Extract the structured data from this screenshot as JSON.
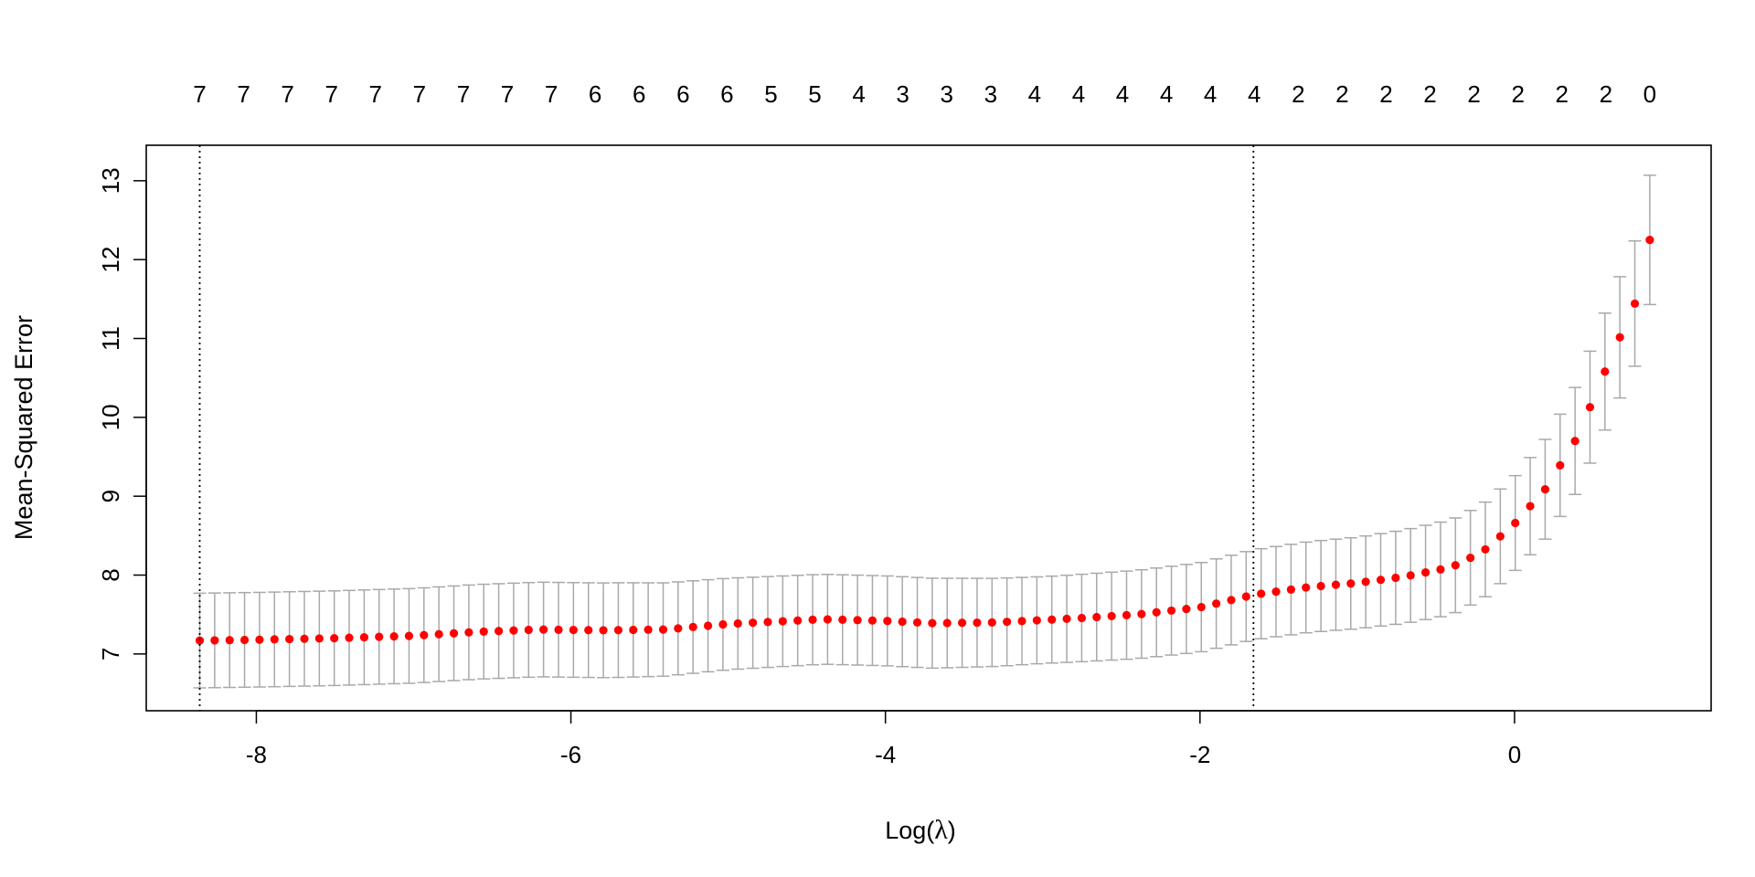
{
  "colors": {
    "point": "#ff0000",
    "errorbar": "#a9a9a9",
    "frame": "#000000",
    "reference_line": "#000000",
    "background": "#ffffff"
  },
  "chart_data": {
    "type": "scatter",
    "title": "",
    "xlabel_prefix": "Log(",
    "xlabel_symbol": "λ",
    "xlabel_suffix": ")",
    "ylabel": "Mean-Squared Error",
    "xlim": [
      -8.7,
      1.25
    ],
    "ylim": [
      6.28,
      13.45
    ],
    "x_ticks": [
      -8,
      -6,
      -4,
      -2,
      0
    ],
    "x_tick_labels": [
      "-8",
      "-6",
      "-4",
      "-2",
      "0"
    ],
    "y_ticks": [
      7,
      8,
      9,
      10,
      11,
      12,
      13
    ],
    "y_tick_labels": [
      "7",
      "8",
      "9",
      "10",
      "11",
      "12",
      "13"
    ],
    "top_labels": [
      "7",
      "7",
      "7",
      "7",
      "7",
      "7",
      "7",
      "7",
      "7",
      "6",
      "6",
      "6",
      "6",
      "5",
      "5",
      "4",
      "3",
      "3",
      "3",
      "4",
      "4",
      "4",
      "4",
      "4",
      "4",
      "2",
      "2",
      "2",
      "2",
      "2",
      "2",
      "2",
      "2",
      "0"
    ],
    "vlines": [
      -8.36,
      -1.66
    ],
    "grid": false,
    "legend": "none",
    "mse_profile_x": [
      -8.36,
      -8.0,
      -7.5,
      -7.0,
      -6.6,
      -6.2,
      -5.8,
      -5.4,
      -5.0,
      -4.4,
      -4.0,
      -3.7,
      -3.3,
      -2.8,
      -2.4,
      -2.0,
      -1.66,
      -1.3,
      -1.0,
      -0.7,
      -0.4,
      -0.2,
      0.0,
      0.2,
      0.4,
      0.6,
      0.8,
      0.86
    ],
    "mse_profile_y": [
      7.17,
      7.18,
      7.2,
      7.23,
      7.28,
      7.31,
      7.3,
      7.31,
      7.38,
      7.44,
      7.42,
      7.39,
      7.4,
      7.45,
      7.5,
      7.59,
      7.75,
      7.85,
      7.9,
      7.98,
      8.1,
      8.3,
      8.65,
      9.1,
      9.75,
      10.7,
      11.6,
      12.25
    ],
    "se_profile_x": [
      -8.36,
      -7.0,
      -6.3,
      -5.7,
      -5.0,
      -4.4,
      -3.7,
      -3.0,
      -2.4,
      -1.66,
      -1.0,
      -0.5,
      0.0,
      0.3,
      0.6,
      0.86
    ],
    "se_profile_y": [
      0.6,
      0.6,
      0.6,
      0.6,
      0.58,
      0.57,
      0.57,
      0.55,
      0.56,
      0.57,
      0.58,
      0.6,
      0.6,
      0.65,
      0.75,
      0.82
    ]
  }
}
